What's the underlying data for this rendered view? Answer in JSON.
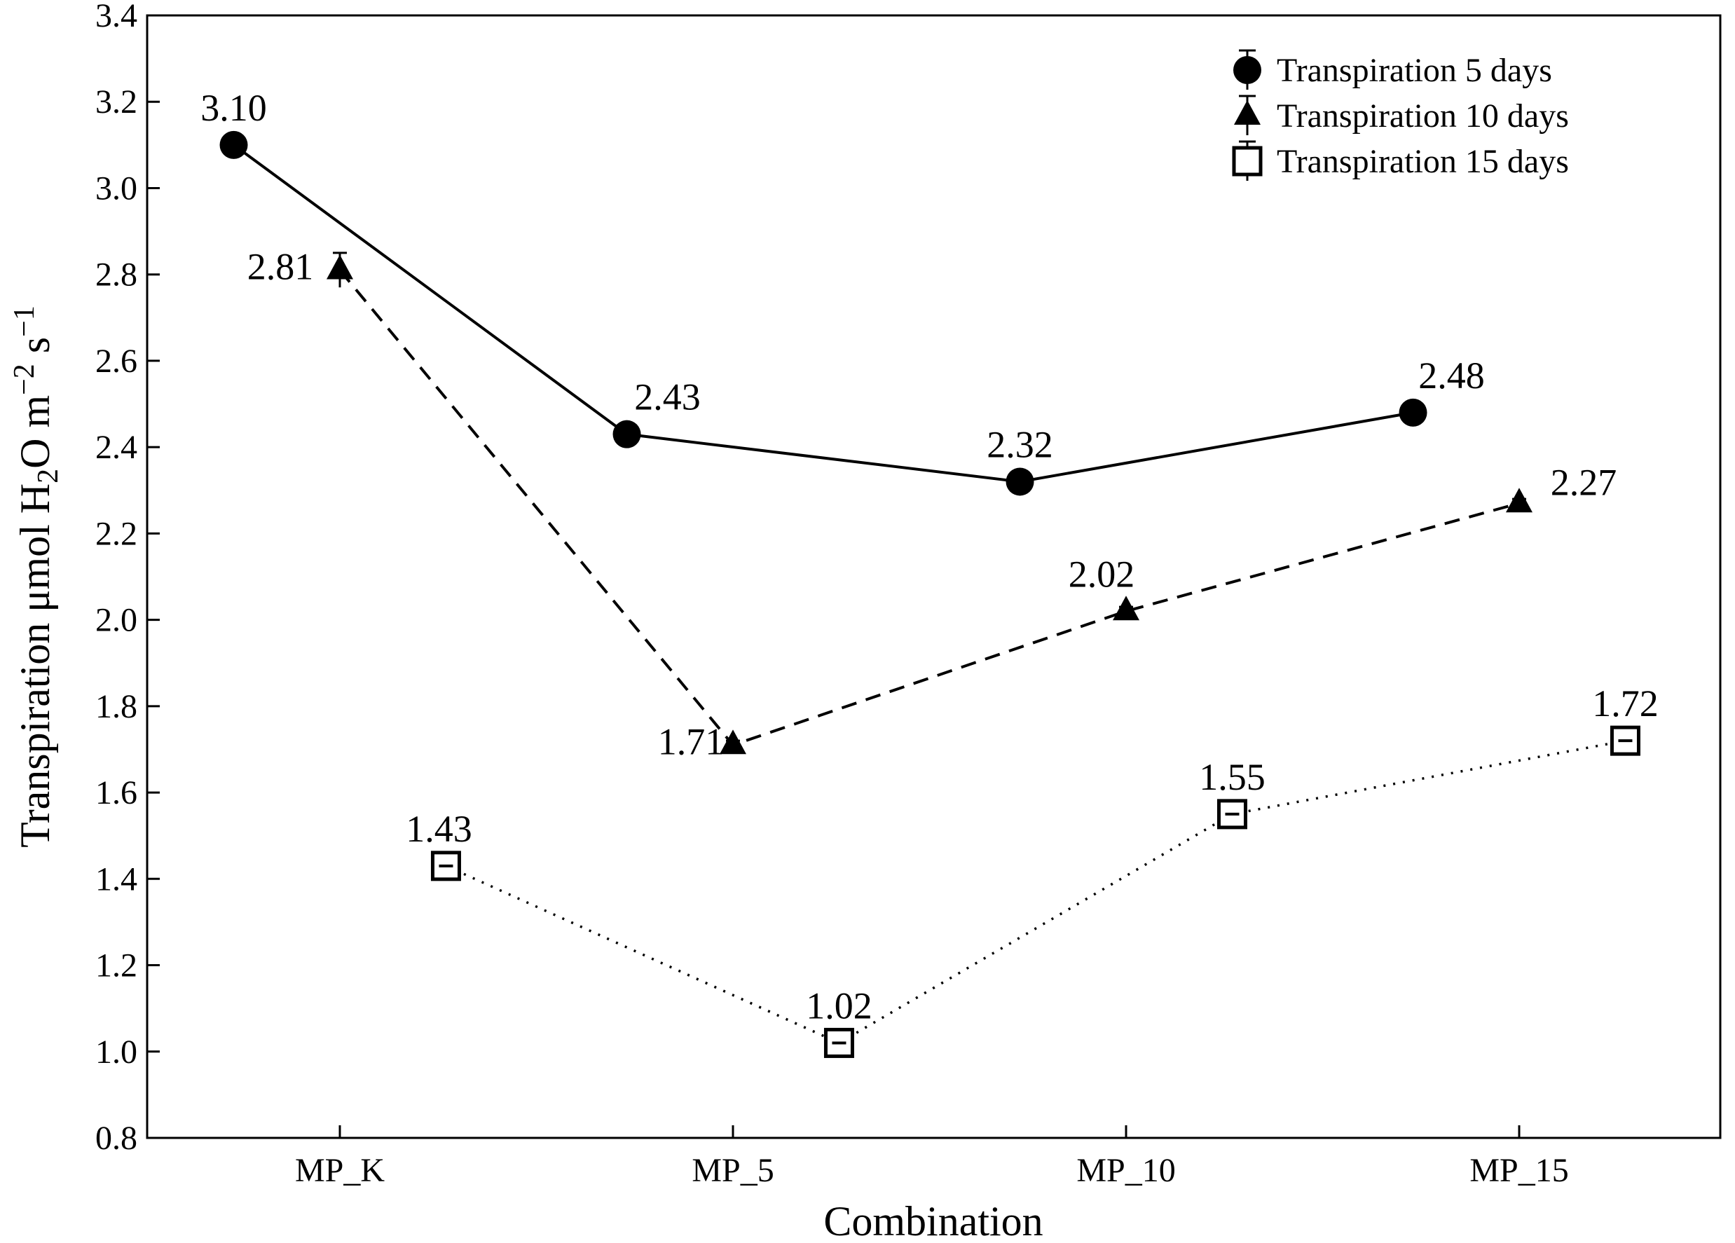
{
  "chart_data": {
    "type": "line",
    "title": "",
    "xlabel": "Combination",
    "ylabel": {
      "main": "Transpiration μmol H",
      "sub": "2",
      "mid": "O m",
      "sup1": "−2",
      "mid2": " s",
      "sup2": "−1"
    },
    "categories": [
      "MP_K",
      "MP_5",
      "MP_10",
      "MP_15"
    ],
    "ylim": [
      0.8,
      3.4
    ],
    "yticks": [
      "0.8",
      "1.0",
      "1.2",
      "1.4",
      "1.6",
      "1.8",
      "2.0",
      "2.2",
      "2.4",
      "2.6",
      "2.8",
      "3.0",
      "3.2",
      "3.4"
    ],
    "legend_position": "top-right",
    "series": [
      {
        "name": "Transpiration 5 days",
        "marker": "circle",
        "line": "solid",
        "offset": -0.27,
        "values": [
          3.1,
          2.43,
          2.32,
          2.48
        ],
        "labels": [
          "3.10",
          "2.43",
          "2.32",
          "2.48"
        ],
        "errors": [
          0.01,
          0.01,
          0.01,
          0.01
        ]
      },
      {
        "name": "Transpiration 10 days",
        "marker": "triangle",
        "line": "dashed",
        "offset": 0.0,
        "values": [
          2.81,
          1.71,
          2.02,
          2.27
        ],
        "labels": [
          "2.81",
          "1.71",
          "2.02",
          "2.27"
        ],
        "errors": [
          0.04,
          0.01,
          0.01,
          0.01
        ]
      },
      {
        "name": "Transpiration 15 days",
        "marker": "square",
        "line": "dotted",
        "offset": 0.27,
        "values": [
          1.43,
          1.02,
          1.55,
          1.72
        ],
        "labels": [
          "1.43",
          "1.02",
          "1.55",
          "1.72"
        ],
        "errors": [
          0.01,
          0.02,
          0.01,
          0.01
        ]
      }
    ]
  }
}
